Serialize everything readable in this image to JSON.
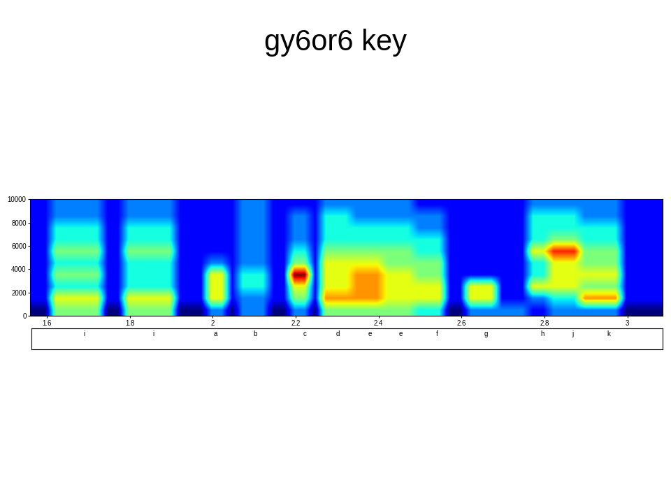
{
  "chart_data": {
    "type": "heatmap",
    "title": "gy6or6 key",
    "xlim": [
      1.56,
      3.085
    ],
    "ylim": [
      0,
      10000
    ],
    "xticks": [
      1.6,
      1.8,
      2,
      2.2,
      2.4,
      2.6,
      2.8,
      3
    ],
    "yticks": [
      0,
      2000,
      4000,
      6000,
      8000,
      10000
    ],
    "color": "jet",
    "cells": [
      [
        1,
        1,
        5,
        5,
        5,
        5,
        5,
        1,
        1,
        5,
        5,
        5,
        5,
        5,
        1,
        1,
        1,
        3,
        3,
        1,
        3,
        3,
        3,
        1,
        1,
        3,
        3,
        1,
        5,
        5,
        5,
        5,
        5,
        5,
        5,
        5,
        5,
        4,
        4,
        4,
        1,
        1,
        3,
        3,
        3,
        3,
        3,
        3,
        2,
        2,
        3,
        3,
        3,
        3,
        3,
        3,
        3,
        1,
        1,
        1,
        1
      ],
      [
        2,
        2,
        6,
        6,
        6,
        6,
        6,
        2,
        2,
        6,
        6,
        6,
        6,
        6,
        2,
        2,
        2,
        6,
        6,
        2,
        3,
        3,
        3,
        2,
        2,
        5,
        5,
        2,
        7,
        7,
        7,
        7,
        7,
        7,
        6,
        6,
        6,
        6,
        6,
        6,
        2,
        2,
        6,
        6,
        6,
        2,
        2,
        2,
        3,
        3,
        4,
        4,
        4,
        7,
        7,
        7,
        7,
        2,
        2,
        2,
        2
      ],
      [
        2,
        2,
        4,
        4,
        4,
        4,
        4,
        2,
        2,
        4,
        4,
        4,
        4,
        4,
        2,
        2,
        2,
        6,
        6,
        2,
        4,
        4,
        4,
        2,
        2,
        6,
        6,
        2,
        6,
        6,
        6,
        7,
        7,
        7,
        6,
        6,
        6,
        6,
        6,
        6,
        2,
        2,
        6,
        6,
        6,
        2,
        2,
        2,
        6,
        6,
        6,
        6,
        6,
        5,
        5,
        5,
        5,
        2,
        2,
        2,
        2
      ],
      [
        2,
        2,
        5,
        5,
        5,
        5,
        5,
        2,
        2,
        4,
        4,
        4,
        4,
        4,
        2,
        2,
        2,
        6,
        6,
        2,
        4,
        4,
        4,
        2,
        2,
        9,
        9,
        2,
        6,
        6,
        6,
        7,
        7,
        7,
        6,
        6,
        6,
        5,
        5,
        5,
        2,
        2,
        2,
        2,
        2,
        2,
        2,
        2,
        4,
        4,
        6,
        6,
        6,
        6,
        6,
        6,
        6,
        2,
        2,
        2,
        2
      ],
      [
        2,
        2,
        4,
        4,
        4,
        4,
        4,
        2,
        2,
        4,
        4,
        4,
        4,
        4,
        2,
        2,
        2,
        3,
        3,
        2,
        3,
        3,
        3,
        2,
        2,
        5,
        5,
        2,
        6,
        6,
        6,
        6,
        6,
        6,
        5,
        5,
        5,
        5,
        5,
        5,
        2,
        2,
        2,
        2,
        2,
        2,
        2,
        2,
        4,
        4,
        6,
        6,
        6,
        5,
        5,
        5,
        5,
        2,
        2,
        2,
        2
      ],
      [
        2,
        2,
        5,
        5,
        5,
        5,
        5,
        2,
        2,
        5,
        5,
        5,
        5,
        5,
        2,
        2,
        2,
        2,
        2,
        2,
        3,
        3,
        3,
        2,
        2,
        4,
        4,
        2,
        5,
        5,
        5,
        5,
        5,
        5,
        5,
        5,
        5,
        4,
        4,
        4,
        2,
        2,
        2,
        2,
        2,
        2,
        2,
        2,
        6,
        6,
        8,
        8,
        8,
        5,
        5,
        5,
        5,
        2,
        2,
        2,
        2
      ],
      [
        2,
        2,
        4,
        4,
        4,
        4,
        4,
        2,
        2,
        4,
        4,
        4,
        4,
        4,
        2,
        2,
        2,
        2,
        2,
        2,
        3,
        3,
        3,
        2,
        2,
        3,
        3,
        2,
        4,
        4,
        4,
        4,
        4,
        4,
        4,
        4,
        4,
        4,
        4,
        4,
        2,
        2,
        2,
        2,
        2,
        2,
        2,
        2,
        4,
        4,
        5,
        5,
        5,
        4,
        4,
        4,
        4,
        2,
        2,
        2,
        2
      ],
      [
        2,
        2,
        4,
        4,
        4,
        4,
        4,
        2,
        2,
        4,
        4,
        4,
        4,
        4,
        2,
        2,
        2,
        2,
        2,
        2,
        3,
        3,
        3,
        2,
        2,
        3,
        3,
        2,
        4,
        4,
        4,
        4,
        4,
        4,
        4,
        4,
        4,
        3,
        3,
        3,
        2,
        2,
        2,
        2,
        2,
        2,
        2,
        2,
        4,
        4,
        4,
        4,
        4,
        4,
        4,
        4,
        4,
        2,
        2,
        2,
        2
      ],
      [
        2,
        2,
        3,
        3,
        3,
        3,
        3,
        2,
        2,
        3,
        3,
        3,
        3,
        3,
        2,
        2,
        2,
        2,
        2,
        2,
        3,
        3,
        3,
        2,
        2,
        3,
        3,
        2,
        4,
        4,
        4,
        3,
        3,
        3,
        3,
        3,
        3,
        3,
        3,
        3,
        2,
        2,
        2,
        2,
        2,
        2,
        2,
        2,
        4,
        4,
        4,
        4,
        4,
        3,
        3,
        3,
        3,
        2,
        2,
        2,
        2
      ],
      [
        2,
        2,
        3,
        3,
        3,
        3,
        3,
        2,
        2,
        3,
        3,
        3,
        3,
        3,
        2,
        2,
        2,
        2,
        2,
        2,
        3,
        3,
        3,
        2,
        2,
        2,
        2,
        2,
        3,
        3,
        3,
        3,
        3,
        3,
        3,
        3,
        3,
        2,
        2,
        2,
        2,
        2,
        2,
        2,
        2,
        2,
        2,
        2,
        3,
        3,
        3,
        3,
        3,
        3,
        3,
        3,
        3,
        2,
        2,
        2,
        2
      ]
    ],
    "segment_labels": {
      "x": [
        1.687,
        1.855,
        2.004,
        2.101,
        2.22,
        2.3,
        2.379,
        2.453,
        2.541,
        2.658,
        2.795,
        2.869,
        2.956
      ],
      "labels": [
        "i",
        "i",
        "a",
        "b",
        "c",
        "d",
        "e",
        "e",
        "f",
        "g",
        "h",
        "j",
        "k"
      ]
    }
  }
}
